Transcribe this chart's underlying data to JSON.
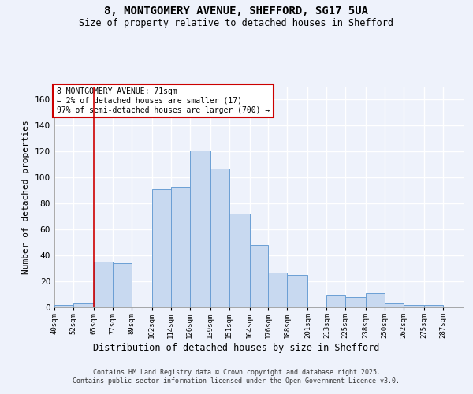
{
  "title_line1": "8, MONTGOMERY AVENUE, SHEFFORD, SG17 5UA",
  "title_line2": "Size of property relative to detached houses in Shefford",
  "xlabel": "Distribution of detached houses by size in Shefford",
  "ylabel": "Number of detached properties",
  "footer": "Contains HM Land Registry data © Crown copyright and database right 2025.\nContains public sector information licensed under the Open Government Licence v3.0.",
  "annotation_line1": "8 MONTGOMERY AVENUE: 71sqm",
  "annotation_line2": "← 2% of detached houses are smaller (17)",
  "annotation_line3": "97% of semi-detached houses are larger (700) →",
  "bar_color": "#c8d9f0",
  "bar_edge_color": "#6b9fd4",
  "vline_color": "#cc0000",
  "vline_x_bin": 1,
  "categories": [
    "40sqm",
    "52sqm",
    "65sqm",
    "77sqm",
    "89sqm",
    "102sqm",
    "114sqm",
    "126sqm",
    "139sqm",
    "151sqm",
    "164sqm",
    "176sqm",
    "188sqm",
    "201sqm",
    "213sqm",
    "225sqm",
    "238sqm",
    "250sqm",
    "262sqm",
    "275sqm",
    "287sqm"
  ],
  "bin_edges": [
    40,
    52,
    65,
    77,
    89,
    102,
    114,
    126,
    139,
    151,
    164,
    176,
    188,
    201,
    213,
    225,
    238,
    250,
    262,
    275,
    287,
    300
  ],
  "values": [
    2,
    3,
    35,
    34,
    0,
    91,
    93,
    121,
    107,
    72,
    48,
    27,
    25,
    0,
    10,
    8,
    11,
    3,
    2,
    2,
    0
  ],
  "ylim": [
    0,
    170
  ],
  "yticks": [
    0,
    20,
    40,
    60,
    80,
    100,
    120,
    140,
    160
  ],
  "background_color": "#eef2fb",
  "grid_color": "#ffffff",
  "vline_xval": 65
}
